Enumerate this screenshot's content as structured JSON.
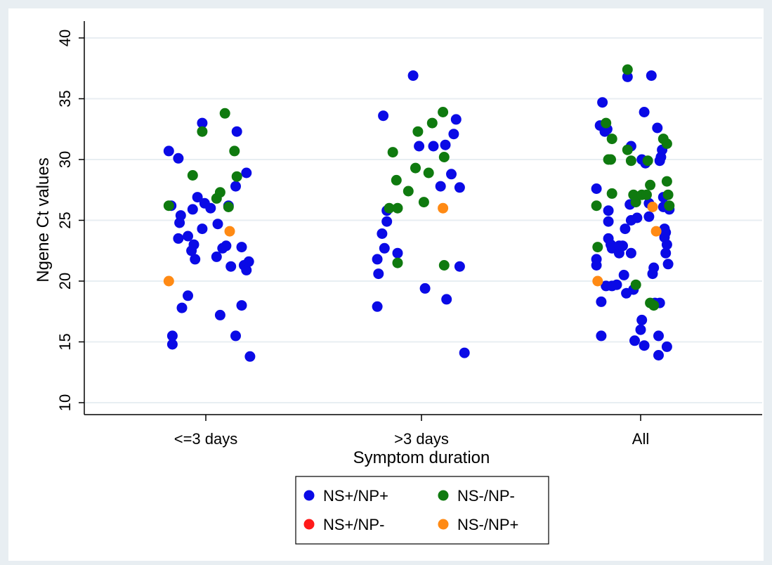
{
  "chart_data": {
    "type": "scatter",
    "title": "",
    "xlabel": "Symptom duration",
    "ylabel": "Ngene Ct values",
    "categories": [
      "<=3 days",
      ">3 days",
      "All"
    ],
    "ylim": [
      10,
      40
    ],
    "yticks": [
      "10",
      "15",
      "20",
      "25",
      "30",
      "35",
      "40"
    ],
    "grid": true,
    "legend_position": "bottom",
    "colors": {
      "NS+/NP+": "#0a0ae6",
      "NS-/NP-": "#0f7a0f",
      "NS+/NP-": "#ff1a1a",
      "NS-/NP+": "#ff8a14",
      "plot_background": "#ffffff",
      "figure_background": "#e8eef2",
      "grid": "#e8eef2"
    },
    "legend": [
      "NS+/NP+",
      "NS-/NP-",
      "NS+/NP-",
      "NS-/NP+"
    ],
    "series": [
      {
        "name": "NS+/NP+",
        "points": [
          {
            "x": "<=3 days",
            "jitter": -0.31,
            "y": 30.7
          },
          {
            "x": "<=3 days",
            "jitter": -0.29,
            "y": 26.2
          },
          {
            "x": "<=3 days",
            "jitter": -0.28,
            "y": 15.5
          },
          {
            "x": "<=3 days",
            "jitter": -0.28,
            "y": 14.8
          },
          {
            "x": "<=3 days",
            "jitter": -0.23,
            "y": 30.1
          },
          {
            "x": "<=3 days",
            "jitter": -0.23,
            "y": 23.5
          },
          {
            "x": "<=3 days",
            "jitter": -0.22,
            "y": 24.8
          },
          {
            "x": "<=3 days",
            "jitter": -0.21,
            "y": 25.4
          },
          {
            "x": "<=3 days",
            "jitter": -0.2,
            "y": 17.8
          },
          {
            "x": "<=3 days",
            "jitter": -0.15,
            "y": 23.7
          },
          {
            "x": "<=3 days",
            "jitter": -0.15,
            "y": 18.8
          },
          {
            "x": "<=3 days",
            "jitter": -0.12,
            "y": 22.5
          },
          {
            "x": "<=3 days",
            "jitter": -0.11,
            "y": 25.9
          },
          {
            "x": "<=3 days",
            "jitter": -0.1,
            "y": 23.0
          },
          {
            "x": "<=3 days",
            "jitter": -0.09,
            "y": 21.8
          },
          {
            "x": "<=3 days",
            "jitter": -0.07,
            "y": 26.9
          },
          {
            "x": "<=3 days",
            "jitter": -0.03,
            "y": 33.0
          },
          {
            "x": "<=3 days",
            "jitter": -0.03,
            "y": 24.3
          },
          {
            "x": "<=3 days",
            "jitter": -0.01,
            "y": 26.4
          },
          {
            "x": "<=3 days",
            "jitter": 0.04,
            "y": 26.0
          },
          {
            "x": "<=3 days",
            "jitter": 0.1,
            "y": 24.7
          },
          {
            "x": "<=3 days",
            "jitter": 0.09,
            "y": 22.0
          },
          {
            "x": "<=3 days",
            "jitter": 0.12,
            "y": 17.2
          },
          {
            "x": "<=3 days",
            "jitter": 0.14,
            "y": 22.7
          },
          {
            "x": "<=3 days",
            "jitter": 0.17,
            "y": 22.9
          },
          {
            "x": "<=3 days",
            "jitter": 0.19,
            "y": 26.2
          },
          {
            "x": "<=3 days",
            "jitter": 0.21,
            "y": 21.2
          },
          {
            "x": "<=3 days",
            "jitter": 0.25,
            "y": 27.8
          },
          {
            "x": "<=3 days",
            "jitter": 0.26,
            "y": 32.3
          },
          {
            "x": "<=3 days",
            "jitter": 0.25,
            "y": 15.5
          },
          {
            "x": "<=3 days",
            "jitter": 0.3,
            "y": 22.8
          },
          {
            "x": "<=3 days",
            "jitter": 0.3,
            "y": 18.0
          },
          {
            "x": "<=3 days",
            "jitter": 0.32,
            "y": 21.3
          },
          {
            "x": "<=3 days",
            "jitter": 0.34,
            "y": 28.9
          },
          {
            "x": "<=3 days",
            "jitter": 0.34,
            "y": 20.9
          },
          {
            "x": "<=3 days",
            "jitter": 0.36,
            "y": 21.6
          },
          {
            "x": "<=3 days",
            "jitter": 0.37,
            "y": 13.8
          },
          {
            "x": ">3 days",
            "jitter": -0.37,
            "y": 21.8
          },
          {
            "x": ">3 days",
            "jitter": -0.37,
            "y": 17.9
          },
          {
            "x": ">3 days",
            "jitter": -0.36,
            "y": 20.6
          },
          {
            "x": ">3 days",
            "jitter": -0.33,
            "y": 23.9
          },
          {
            "x": ">3 days",
            "jitter": -0.32,
            "y": 33.6
          },
          {
            "x": ">3 days",
            "jitter": -0.31,
            "y": 22.7
          },
          {
            "x": ">3 days",
            "jitter": -0.29,
            "y": 25.8
          },
          {
            "x": ">3 days",
            "jitter": -0.29,
            "y": 24.9
          },
          {
            "x": ">3 days",
            "jitter": -0.2,
            "y": 22.3
          },
          {
            "x": ">3 days",
            "jitter": -0.07,
            "y": 36.9
          },
          {
            "x": ">3 days",
            "jitter": -0.02,
            "y": 31.1
          },
          {
            "x": ">3 days",
            "jitter": 0.03,
            "y": 19.4
          },
          {
            "x": ">3 days",
            "jitter": 0.1,
            "y": 31.1
          },
          {
            "x": ">3 days",
            "jitter": 0.16,
            "y": 27.8
          },
          {
            "x": ">3 days",
            "jitter": 0.2,
            "y": 31.2
          },
          {
            "x": ">3 days",
            "jitter": 0.21,
            "y": 18.5
          },
          {
            "x": ">3 days",
            "jitter": 0.25,
            "y": 28.8
          },
          {
            "x": ">3 days",
            "jitter": 0.27,
            "y": 32.1
          },
          {
            "x": ">3 days",
            "jitter": 0.29,
            "y": 33.3
          },
          {
            "x": ">3 days",
            "jitter": 0.32,
            "y": 27.7
          },
          {
            "x": ">3 days",
            "jitter": 0.32,
            "y": 21.2
          },
          {
            "x": ">3 days",
            "jitter": 0.36,
            "y": 14.1
          },
          {
            "x": "All",
            "jitter": -0.37,
            "y": 21.8
          },
          {
            "x": "All",
            "jitter": -0.37,
            "y": 21.3
          },
          {
            "x": "All",
            "jitter": -0.37,
            "y": 27.6
          },
          {
            "x": "All",
            "jitter": -0.34,
            "y": 32.8
          },
          {
            "x": "All",
            "jitter": -0.33,
            "y": 18.3
          },
          {
            "x": "All",
            "jitter": -0.33,
            "y": 15.5
          },
          {
            "x": "All",
            "jitter": -0.32,
            "y": 34.7
          },
          {
            "x": "All",
            "jitter": -0.3,
            "y": 32.3
          },
          {
            "x": "All",
            "jitter": -0.29,
            "y": 19.6
          },
          {
            "x": "All",
            "jitter": -0.28,
            "y": 32.5
          },
          {
            "x": "All",
            "jitter": -0.27,
            "y": 25.8
          },
          {
            "x": "All",
            "jitter": -0.27,
            "y": 24.9
          },
          {
            "x": "All",
            "jitter": -0.27,
            "y": 23.5
          },
          {
            "x": "All",
            "jitter": -0.25,
            "y": 23.0
          },
          {
            "x": "All",
            "jitter": -0.24,
            "y": 22.7
          },
          {
            "x": "All",
            "jitter": -0.24,
            "y": 19.6
          },
          {
            "x": "All",
            "jitter": -0.2,
            "y": 19.7
          },
          {
            "x": "All",
            "jitter": -0.18,
            "y": 22.9
          },
          {
            "x": "All",
            "jitter": -0.18,
            "y": 22.3
          },
          {
            "x": "All",
            "jitter": -0.15,
            "y": 22.9
          },
          {
            "x": "All",
            "jitter": -0.14,
            "y": 20.5
          },
          {
            "x": "All",
            "jitter": -0.13,
            "y": 24.3
          },
          {
            "x": "All",
            "jitter": -0.12,
            "y": 19.0
          },
          {
            "x": "All",
            "jitter": -0.11,
            "y": 36.8
          },
          {
            "x": "All",
            "jitter": -0.09,
            "y": 26.3
          },
          {
            "x": "All",
            "jitter": -0.08,
            "y": 31.1
          },
          {
            "x": "All",
            "jitter": -0.08,
            "y": 25.0
          },
          {
            "x": "All",
            "jitter": -0.08,
            "y": 22.3
          },
          {
            "x": "All",
            "jitter": -0.06,
            "y": 19.3
          },
          {
            "x": "All",
            "jitter": -0.05,
            "y": 15.1
          },
          {
            "x": "All",
            "jitter": -0.03,
            "y": 25.2
          },
          {
            "x": "All",
            "jitter": 0.0,
            "y": 16.0
          },
          {
            "x": "All",
            "jitter": 0.01,
            "y": 16.8
          },
          {
            "x": "All",
            "jitter": 0.01,
            "y": 30.0
          },
          {
            "x": "All",
            "jitter": 0.03,
            "y": 33.9
          },
          {
            "x": "All",
            "jitter": 0.03,
            "y": 14.7
          },
          {
            "x": "All",
            "jitter": 0.04,
            "y": 29.7
          },
          {
            "x": "All",
            "jitter": 0.07,
            "y": 26.4
          },
          {
            "x": "All",
            "jitter": 0.07,
            "y": 25.3
          },
          {
            "x": "All",
            "jitter": 0.09,
            "y": 36.9
          },
          {
            "x": "All",
            "jitter": 0.1,
            "y": 20.6
          },
          {
            "x": "All",
            "jitter": 0.11,
            "y": 21.1
          },
          {
            "x": "All",
            "jitter": 0.12,
            "y": 18.2
          },
          {
            "x": "All",
            "jitter": 0.14,
            "y": 32.6
          },
          {
            "x": "All",
            "jitter": 0.15,
            "y": 15.5
          },
          {
            "x": "All",
            "jitter": 0.15,
            "y": 13.9
          },
          {
            "x": "All",
            "jitter": 0.16,
            "y": 18.2
          },
          {
            "x": "All",
            "jitter": 0.16,
            "y": 29.9
          },
          {
            "x": "All",
            "jitter": 0.17,
            "y": 30.2
          },
          {
            "x": "All",
            "jitter": 0.18,
            "y": 30.8
          },
          {
            "x": "All",
            "jitter": 0.19,
            "y": 26.9
          },
          {
            "x": "All",
            "jitter": 0.19,
            "y": 26.1
          },
          {
            "x": "All",
            "jitter": 0.2,
            "y": 24.3
          },
          {
            "x": "All",
            "jitter": 0.2,
            "y": 23.6
          },
          {
            "x": "All",
            "jitter": 0.21,
            "y": 24.0
          },
          {
            "x": "All",
            "jitter": 0.21,
            "y": 22.3
          },
          {
            "x": "All",
            "jitter": 0.22,
            "y": 23.0
          },
          {
            "x": "All",
            "jitter": 0.22,
            "y": 14.6
          },
          {
            "x": "All",
            "jitter": 0.23,
            "y": 21.4
          },
          {
            "x": "All",
            "jitter": 0.24,
            "y": 25.9
          }
        ]
      },
      {
        "name": "NS-/NP-",
        "points": [
          {
            "x": "<=3 days",
            "jitter": -0.31,
            "y": 26.2
          },
          {
            "x": "<=3 days",
            "jitter": -0.11,
            "y": 28.7
          },
          {
            "x": "<=3 days",
            "jitter": -0.03,
            "y": 32.3
          },
          {
            "x": "<=3 days",
            "jitter": 0.09,
            "y": 26.8
          },
          {
            "x": "<=3 days",
            "jitter": 0.12,
            "y": 27.3
          },
          {
            "x": "<=3 days",
            "jitter": 0.16,
            "y": 33.8
          },
          {
            "x": "<=3 days",
            "jitter": 0.19,
            "y": 26.1
          },
          {
            "x": "<=3 days",
            "jitter": 0.24,
            "y": 30.7
          },
          {
            "x": "<=3 days",
            "jitter": 0.26,
            "y": 28.6
          },
          {
            "x": ">3 days",
            "jitter": -0.27,
            "y": 26.0
          },
          {
            "x": ">3 days",
            "jitter": -0.24,
            "y": 30.6
          },
          {
            "x": ">3 days",
            "jitter": -0.21,
            "y": 28.3
          },
          {
            "x": ">3 days",
            "jitter": -0.2,
            "y": 26.0
          },
          {
            "x": ">3 days",
            "jitter": -0.2,
            "y": 21.5
          },
          {
            "x": ">3 days",
            "jitter": -0.11,
            "y": 27.4
          },
          {
            "x": ">3 days",
            "jitter": -0.05,
            "y": 29.3
          },
          {
            "x": ">3 days",
            "jitter": -0.03,
            "y": 32.3
          },
          {
            "x": ">3 days",
            "jitter": 0.02,
            "y": 26.5
          },
          {
            "x": ">3 days",
            "jitter": 0.06,
            "y": 28.9
          },
          {
            "x": ">3 days",
            "jitter": 0.09,
            "y": 33.0
          },
          {
            "x": ">3 days",
            "jitter": 0.18,
            "y": 33.9
          },
          {
            "x": ">3 days",
            "jitter": 0.19,
            "y": 30.2
          },
          {
            "x": ">3 days",
            "jitter": 0.19,
            "y": 21.3
          },
          {
            "x": "All",
            "jitter": -0.37,
            "y": 26.2
          },
          {
            "x": "All",
            "jitter": -0.36,
            "y": 22.8
          },
          {
            "x": "All",
            "jitter": -0.29,
            "y": 33.0
          },
          {
            "x": "All",
            "jitter": -0.27,
            "y": 30.0
          },
          {
            "x": "All",
            "jitter": -0.25,
            "y": 30.0
          },
          {
            "x": "All",
            "jitter": -0.24,
            "y": 31.7
          },
          {
            "x": "All",
            "jitter": -0.24,
            "y": 27.2
          },
          {
            "x": "All",
            "jitter": -0.11,
            "y": 30.8
          },
          {
            "x": "All",
            "jitter": -0.08,
            "y": 29.9
          },
          {
            "x": "All",
            "jitter": -0.06,
            "y": 27.1
          },
          {
            "x": "All",
            "jitter": -0.04,
            "y": 26.5
          },
          {
            "x": "All",
            "jitter": -0.04,
            "y": 19.7
          },
          {
            "x": "All",
            "jitter": 0.01,
            "y": 27.1
          },
          {
            "x": "All",
            "jitter": 0.05,
            "y": 27.1
          },
          {
            "x": "All",
            "jitter": 0.06,
            "y": 29.9
          },
          {
            "x": "All",
            "jitter": 0.08,
            "y": 27.9
          },
          {
            "x": "All",
            "jitter": 0.08,
            "y": 18.2
          },
          {
            "x": "All",
            "jitter": 0.11,
            "y": 18.0
          },
          {
            "x": "All",
            "jitter": 0.19,
            "y": 31.7
          },
          {
            "x": "All",
            "jitter": 0.22,
            "y": 31.3
          },
          {
            "x": "All",
            "jitter": 0.22,
            "y": 28.2
          },
          {
            "x": "All",
            "jitter": 0.23,
            "y": 27.1
          },
          {
            "x": "All",
            "jitter": 0.24,
            "y": 26.2
          },
          {
            "x": "All",
            "jitter": -0.11,
            "y": 37.4
          }
        ]
      },
      {
        "name": "NS+/NP-",
        "points": []
      },
      {
        "name": "NS-/NP+",
        "points": [
          {
            "x": "<=3 days",
            "jitter": -0.31,
            "y": 20.0
          },
          {
            "x": "<=3 days",
            "jitter": 0.2,
            "y": 24.1
          },
          {
            "x": ">3 days",
            "jitter": 0.18,
            "y": 26.0
          },
          {
            "x": "All",
            "jitter": -0.36,
            "y": 20.0
          },
          {
            "x": "All",
            "jitter": 0.1,
            "y": 26.1
          },
          {
            "x": "All",
            "jitter": 0.13,
            "y": 24.1
          }
        ]
      }
    ]
  }
}
